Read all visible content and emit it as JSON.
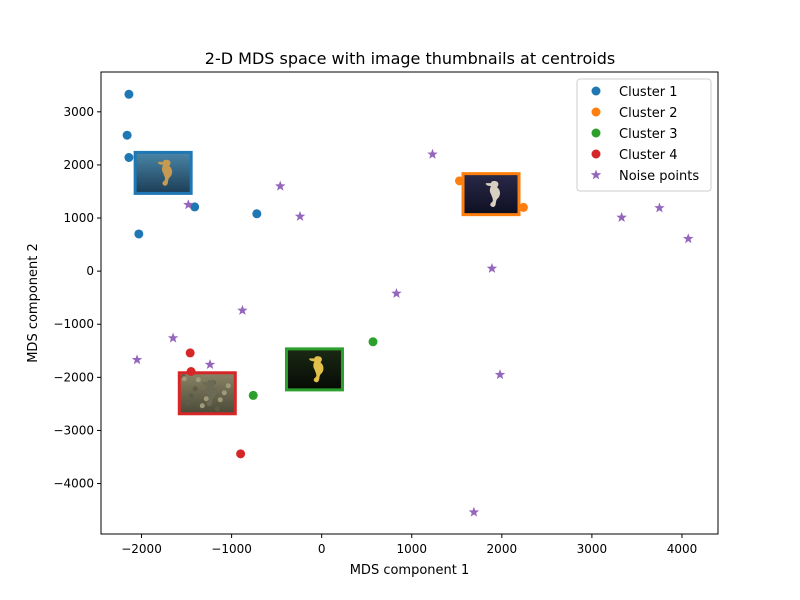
{
  "chart_data": {
    "type": "scatter",
    "title": "2-D MDS space with image thumbnails at centroids",
    "xlabel": "MDS component 1",
    "ylabel": "MDS component 2",
    "xlim": [
      -2450,
      4400
    ],
    "ylim": [
      -4950,
      3750
    ],
    "xticks": [
      -2000,
      -1000,
      0,
      1000,
      2000,
      3000,
      4000
    ],
    "yticks": [
      -4000,
      -3000,
      -2000,
      -1000,
      0,
      1000,
      2000,
      3000
    ],
    "grid": false,
    "legend_position": "top-right",
    "series": [
      {
        "name": "Cluster 1",
        "marker": "circle",
        "color": "#1f77b4",
        "points": [
          [
            -2140,
            3330
          ],
          [
            -2160,
            2560
          ],
          [
            -2140,
            2140
          ],
          [
            -1410,
            1210
          ],
          [
            -720,
            1080
          ],
          [
            -2030,
            700
          ]
        ]
      },
      {
        "name": "Cluster 2",
        "marker": "circle",
        "color": "#ff7f0e",
        "points": [
          [
            1530,
            1700
          ],
          [
            2240,
            1200
          ]
        ]
      },
      {
        "name": "Cluster 3",
        "marker": "circle",
        "color": "#2ca02c",
        "points": [
          [
            570,
            -1330
          ],
          [
            -760,
            -2340
          ]
        ]
      },
      {
        "name": "Cluster 4",
        "marker": "circle",
        "color": "#d62728",
        "points": [
          [
            -1460,
            -1540
          ],
          [
            -1450,
            -1890
          ],
          [
            -900,
            -3440
          ]
        ]
      },
      {
        "name": "Noise points",
        "marker": "star",
        "color": "#9467bd",
        "points": [
          [
            1230,
            2200
          ],
          [
            -460,
            1600
          ],
          [
            -1480,
            1250
          ],
          [
            -240,
            1030
          ],
          [
            3330,
            1010
          ],
          [
            3750,
            1190
          ],
          [
            4070,
            610
          ],
          [
            1890,
            50
          ],
          [
            830,
            -420
          ],
          [
            -880,
            -740
          ],
          [
            -1650,
            -1260
          ],
          [
            -2050,
            -1670
          ],
          [
            -1240,
            -1760
          ],
          [
            1980,
            -1950
          ],
          [
            1690,
            -4540
          ]
        ]
      }
    ],
    "thumbnails": [
      {
        "cluster": "Cluster 1",
        "x": -1760,
        "y": 1850,
        "frame_color": "#1f77b4",
        "icon": "seahorse-thumbnail-blue"
      },
      {
        "cluster": "Cluster 2",
        "x": 1880,
        "y": 1450,
        "frame_color": "#ff7f0e",
        "icon": "seahorse-thumbnail-dark"
      },
      {
        "cluster": "Cluster 3",
        "x": -80,
        "y": -1850,
        "frame_color": "#2ca02c",
        "icon": "seahorse-thumbnail-night"
      },
      {
        "cluster": "Cluster 4",
        "x": -1270,
        "y": -2300,
        "frame_color": "#d62728",
        "icon": "seahorse-thumbnail-reef"
      }
    ]
  }
}
